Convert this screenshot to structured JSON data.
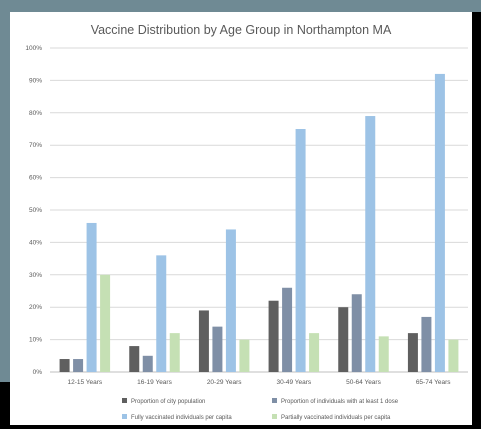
{
  "chart_data": {
    "type": "bar",
    "title": "Vaccine Distribution by Age Group in Northampton MA",
    "categories": [
      "12-15 Years",
      "16-19 Years",
      "20-29 Years",
      "30-49 Years",
      "50-64 Years",
      "65-74 Years"
    ],
    "series": [
      {
        "name": "Proportion of city population",
        "color": "#5f5f5f",
        "values": [
          4,
          8,
          19,
          22,
          20,
          12
        ]
      },
      {
        "name": "Proportion of individuals with at least 1 dose",
        "color": "#7f8fa6",
        "values": [
          4,
          5,
          14,
          26,
          24,
          17
        ]
      },
      {
        "name": "Fully vaccinated individuals per capita",
        "color": "#9dc3e6",
        "values": [
          46,
          36,
          44,
          75,
          79,
          92
        ]
      },
      {
        "name": "Partially vaccinated individuals per capita",
        "color": "#c5e0b4",
        "values": [
          30,
          12,
          10,
          12,
          11,
          10
        ]
      }
    ],
    "yticks": [
      "0%",
      "10%",
      "20%",
      "30%",
      "40%",
      "50%",
      "60%",
      "70%",
      "80%",
      "90%",
      "100%"
    ],
    "ylim": [
      0,
      100
    ],
    "grid": true,
    "legend_position": "bottom"
  }
}
